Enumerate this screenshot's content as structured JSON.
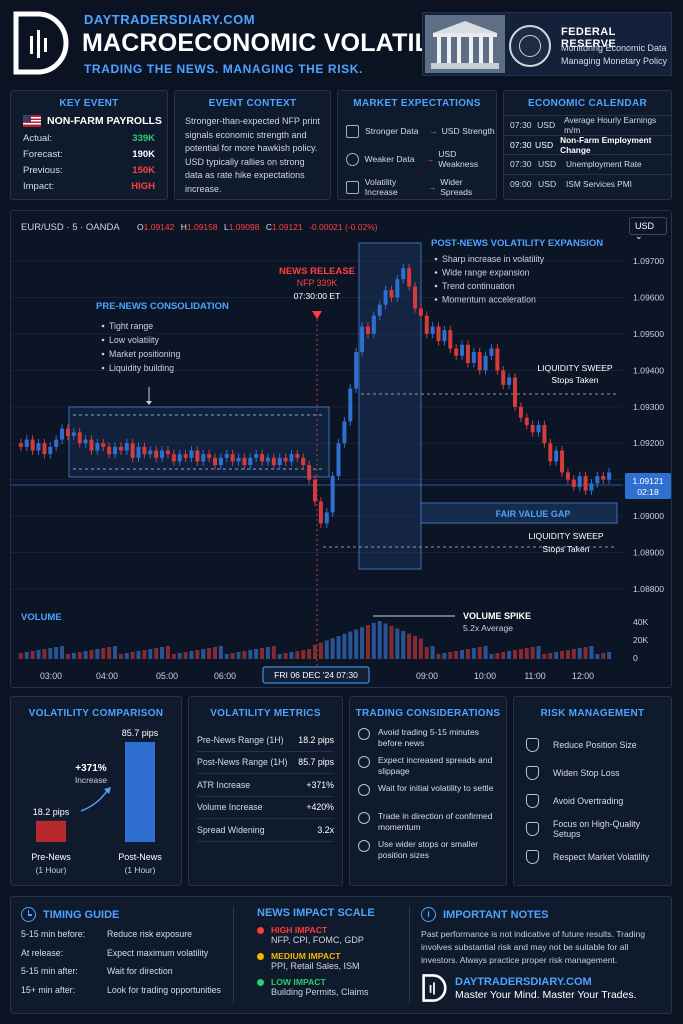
{
  "header": {
    "site": "DAYTRADERSDIARY.COM",
    "title": "MACROECONOMIC VOLATILITY",
    "tagline": "TRADING THE NEWS. MANAGING THE RISK.",
    "fed_title": "FEDERAL RESERVE",
    "fed_line1": "Monitoring Economic Data",
    "fed_line2": "Managing Monetary Policy"
  },
  "key_event": {
    "title": "KEY EVENT",
    "name": "NON-FARM PAYROLLS",
    "rows": [
      {
        "label": "Actual:",
        "value": "339K",
        "color": "#2ecc71"
      },
      {
        "label": "Forecast:",
        "value": "190K",
        "color": "#ffffff"
      },
      {
        "label": "Previous:",
        "value": "150K",
        "color": "#ff4040"
      },
      {
        "label": "Impact:",
        "value": "HIGH",
        "color": "#ff4040"
      }
    ]
  },
  "event_context": {
    "title": "EVENT CONTEXT",
    "text": "Stronger-than-expected NFP print signals economic strength and potential for more hawkish policy. USD typically rallies on strong data as rate hike expectations increase."
  },
  "market_expectations": {
    "title": "MARKET EXPECTATIONS",
    "rows": [
      {
        "left": "Stronger Data",
        "right": "USD Strength",
        "icon": "bar-chart-icon",
        "color": "#2ecc71"
      },
      {
        "left": "Weaker Data",
        "right": "USD Weakness",
        "icon": "gear-icon",
        "color": "#ff4040"
      },
      {
        "left": "Volatility Increase",
        "right": "Wider Spreads",
        "icon": "pulse-icon",
        "color": "#4da3ff"
      }
    ]
  },
  "calendar": {
    "title": "ECONOMIC CALENDAR",
    "rows": [
      {
        "time": "07:30",
        "cur": "USD",
        "event": "Average Hourly Earnings m/m"
      },
      {
        "time": "07:30",
        "cur": "USD",
        "event": "Non-Farm Employment Change"
      },
      {
        "time": "07:30",
        "cur": "USD",
        "event": "Unemployment Rate"
      },
      {
        "time": "09:00",
        "cur": "USD",
        "event": "ISM Services PMI"
      }
    ]
  },
  "chart": {
    "symbol": "EUR/USD · 5 · OANDA",
    "ohlc": {
      "o": "1.09142",
      "h": "1.09158",
      "l": "1.09098",
      "c": "1.09121",
      "chg": "-0.00021 (-0.02%)"
    },
    "currency": "USD",
    "price_labels": [
      "1.09700",
      "1.09600",
      "1.09500",
      "1.09400",
      "1.09300",
      "1.09200",
      "1.09100",
      "1.09000",
      "1.08900",
      "1.08800"
    ],
    "current_price": "1.09121",
    "current_time": "02:18",
    "time_labels": [
      "03:00",
      "04:00",
      "05:00",
      "06:00",
      "09:00",
      "10:00",
      "11:00",
      "12:00"
    ],
    "date_label": "FRI 06 DEC '24   07:30",
    "pre_news": {
      "title": "PRE-NEWS CONSOLIDATION",
      "items": [
        "Tight range",
        "Low volatility",
        "Market positioning",
        "Liquidity building"
      ]
    },
    "news": {
      "title": "NEWS RELEASE",
      "sub": "NFP 339K",
      "time": "07:30:00 ET"
    },
    "post_news": {
      "title": "POST-NEWS VOLATILITY EXPANSION",
      "items": [
        "Sharp increase in volatility",
        "Wide range expansion",
        "Trend continuation",
        "Momentum acceleration"
      ]
    },
    "sweep_top": {
      "title": "LIQUIDITY SWEEP",
      "sub": "Stops Taken"
    },
    "sweep_bottom": {
      "title": "LIQUIDITY SWEEP",
      "sub": "Stops Taken"
    },
    "fvg": "FAIR VALUE GAP",
    "volume_title": "VOLUME",
    "volume_spike": {
      "title": "VOLUME SPIKE",
      "sub": "5.2x Average"
    },
    "volume_labels": [
      "40K",
      "20K",
      "0"
    ]
  },
  "volatility_comparison": {
    "title": "VOLATILITY COMPARISON",
    "increase": "+371%",
    "increase_label": "Increase",
    "bars": [
      {
        "value": "18.2 pips",
        "label": "Pre-News",
        "sub": "(1 Hour)",
        "pips": 18.2,
        "color": "#b8282c"
      },
      {
        "value": "85.7 pips",
        "label": "Post-News",
        "sub": "(1 Hour)",
        "pips": 85.7,
        "color": "#2f6fd1"
      }
    ]
  },
  "volatility_metrics": {
    "title": "VOLATILITY METRICS",
    "rows": [
      {
        "label": "Pre-News Range (1H)",
        "value": "18.2 pips"
      },
      {
        "label": "Post-News Range (1H)",
        "value": "85.7 pips"
      },
      {
        "label": "ATR Increase",
        "value": "+371%"
      },
      {
        "label": "Volume Increase",
        "value": "+420%"
      },
      {
        "label": "Spread Widening",
        "value": "3.2x"
      }
    ]
  },
  "trading_considerations": {
    "title": "TRADING CONSIDERATIONS",
    "rows": [
      {
        "text": "Avoid trading 5-15 minutes before news",
        "icon": "clock-icon"
      },
      {
        "text": "Expect increased spreads and slippage",
        "icon": "arrows-icon"
      },
      {
        "text": "Wait for initial volatility to settle",
        "icon": "timer-icon"
      },
      {
        "text": "Trade in direction of confirmed momentum",
        "icon": "trend-icon"
      },
      {
        "text": "Use wider stops or smaller position sizes",
        "icon": "adjust-icon"
      }
    ]
  },
  "risk_management": {
    "title": "RISK MANAGEMENT",
    "rows": [
      {
        "text": "Reduce Position Size",
        "icon": "shield-icon"
      },
      {
        "text": "Widen Stop Loss",
        "icon": "stop-icon"
      },
      {
        "text": "Avoid Overtrading",
        "icon": "pen-icon"
      },
      {
        "text": "Focus on High-Quality Setups",
        "icon": "check-shield-icon"
      },
      {
        "text": "Respect Market Volatility",
        "icon": "chart-icon"
      }
    ]
  },
  "timing_guide": {
    "title": "TIMING GUIDE",
    "rows": [
      {
        "when": "5-15 min before:",
        "what": "Reduce risk exposure"
      },
      {
        "when": "At release:",
        "what": "Expect maximum volatility"
      },
      {
        "when": "5-15 min after:",
        "what": "Wait for direction"
      },
      {
        "when": "15+ min after:",
        "what": "Look for trading opportunities"
      }
    ]
  },
  "impact_scale": {
    "title": "NEWS IMPACT SCALE",
    "rows": [
      {
        "level": "HIGH IMPACT",
        "items": "NFP, CPI, FOMC, GDP",
        "color": "#ff3b3b"
      },
      {
        "level": "MEDIUM IMPACT",
        "items": "PPI, Retail Sales, ISM",
        "color": "#f5b700"
      },
      {
        "level": "LOW IMPACT",
        "items": "Building Permits, Claims",
        "color": "#2ecc71"
      }
    ]
  },
  "notes": {
    "title": "IMPORTANT NOTES",
    "text": "Past performance is not indicative of future results. Trading involves substantial risk and may not be suitable for all investors. Always practice proper risk management.",
    "site": "DAYTRADERSDIARY.COM",
    "slogan": "Master Your Mind. Master Your Trades."
  }
}
